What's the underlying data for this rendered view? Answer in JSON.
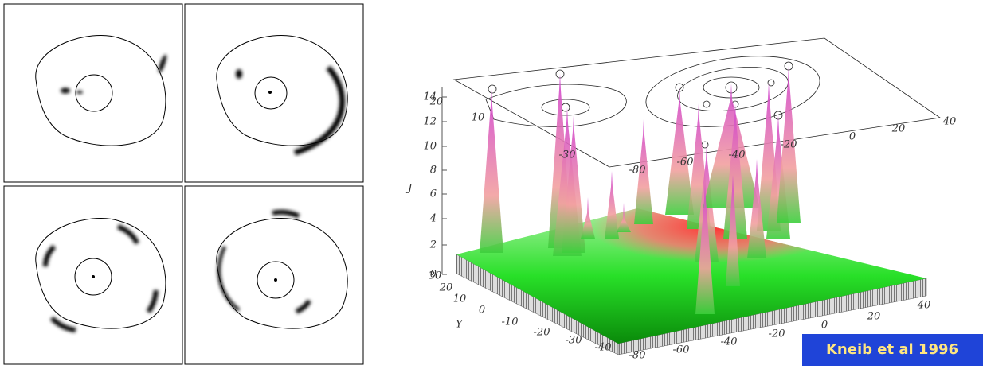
{
  "surface_plot": {
    "z_axis_label": "J",
    "z_ticks": [
      0,
      2,
      4,
      6,
      8,
      10,
      12,
      14
    ],
    "y_label": "Y",
    "y_ticks": [
      30,
      20,
      10,
      0,
      -10,
      -20,
      -30,
      -40
    ],
    "x_ticks": [
      -80,
      -60,
      -40,
      -20,
      0,
      20,
      40
    ],
    "top_y_ticks": [
      20,
      10,
      -30
    ],
    "top_x_ticks": [
      -80,
      -60,
      -40,
      -20,
      0,
      20,
      40
    ]
  },
  "caption": "Kneib et al 1996"
}
